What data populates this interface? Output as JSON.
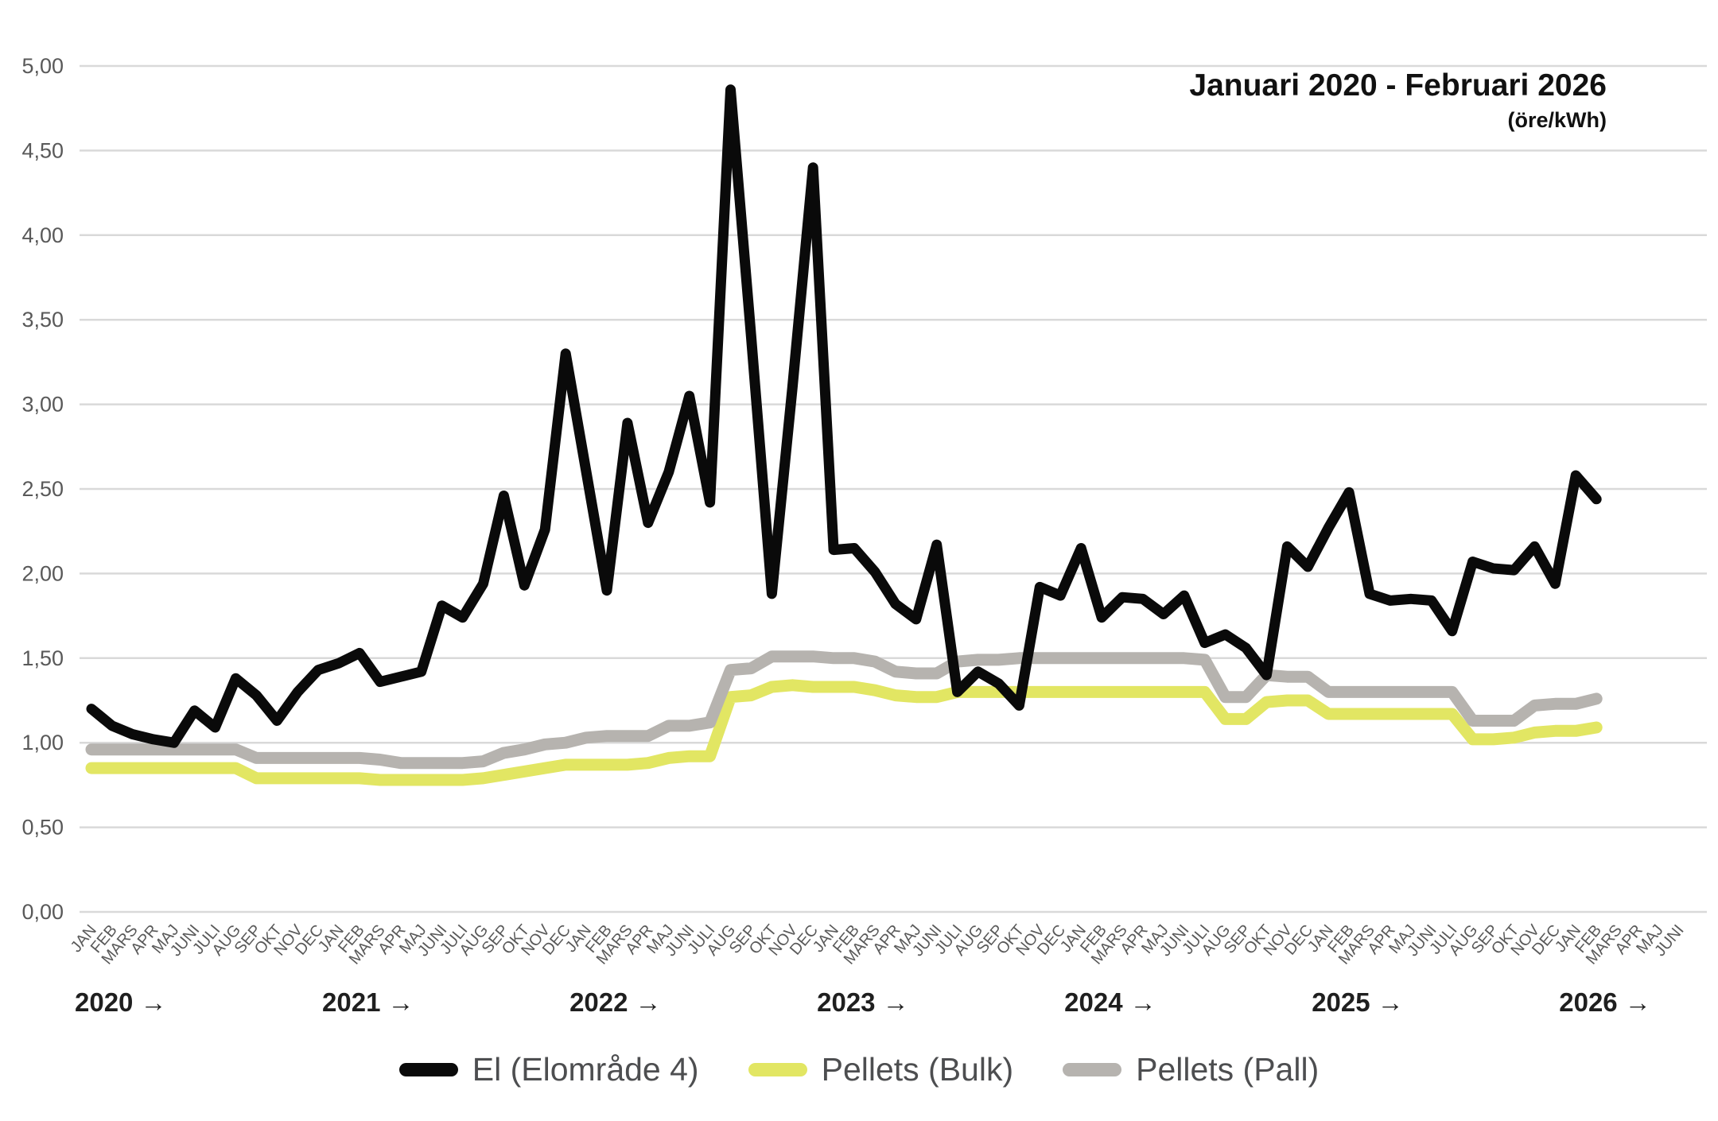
{
  "title": "Januari 2020 - Februari 2026",
  "subtitle": "(öre/kWh)",
  "colors": {
    "el": "#0a0a0a",
    "pellets_bulk": "#e2e663",
    "pellets_pall": "#b6b3af",
    "gridline": "#d9d9d9",
    "axis_text": "#595959",
    "year_text": "#1f1f1f",
    "legend_text": "#4d4e50"
  },
  "chart_data": {
    "type": "line",
    "title": "Januari 2020 - Februari 2026",
    "subtitle": "(öre/kWh)",
    "grid": true,
    "legend_position": "bottom",
    "y_axis": {
      "min": 0,
      "max": 5,
      "step": 0.5,
      "tick_labels": [
        "0,00",
        "0,50",
        "1,00",
        "1,50",
        "2,00",
        "2,50",
        "3,00",
        "3,50",
        "4,00",
        "4,50",
        "5,00"
      ]
    },
    "x_axis": {
      "months": [
        "JAN",
        "FEB",
        "MARS",
        "APR",
        "MAJ",
        "JUNI",
        "JULI",
        "AUG",
        "SEP",
        "OKT",
        "NOV",
        "DEC",
        "JAN",
        "FEB",
        "MARS",
        "APR",
        "MAJ",
        "JUNI",
        "JULI",
        "AUG",
        "SEP",
        "OKT",
        "NOV",
        "DEC",
        "JAN",
        "FEB",
        "MARS",
        "APR",
        "MAJ",
        "JUNI",
        "JULI",
        "AUG",
        "SEP",
        "OKT",
        "NOV",
        "DEC",
        "JAN",
        "FEB",
        "MARS",
        "APR",
        "MAJ",
        "JUNI",
        "JULI",
        "AUG",
        "SEP",
        "OKT",
        "NOV",
        "DEC",
        "JAN",
        "FEB",
        "MARS",
        "APR",
        "MAJ",
        "JUNI",
        "JULI",
        "AUG",
        "SEP",
        "OKT",
        "NOV",
        "DEC",
        "JAN",
        "FEB",
        "MARS",
        "APR",
        "MAJ",
        "JUNI",
        "JULI",
        "AUG",
        "SEP",
        "OKT",
        "NOV",
        "DEC",
        "JAN",
        "FEB",
        "MARS",
        "APR",
        "MAJ",
        "JUNI"
      ],
      "years": [
        {
          "label": "2020",
          "arrow": "→",
          "month_index": 0
        },
        {
          "label": "2021",
          "arrow": "→",
          "month_index": 12
        },
        {
          "label": "2022",
          "arrow": "→",
          "month_index": 24
        },
        {
          "label": "2023",
          "arrow": "→",
          "month_index": 36
        },
        {
          "label": "2024",
          "arrow": "→",
          "month_index": 48
        },
        {
          "label": "2025",
          "arrow": "→",
          "month_index": 60
        },
        {
          "label": "2026",
          "arrow": "→",
          "month_index": 72
        }
      ]
    },
    "series": [
      {
        "name": "El (Elområde 4)",
        "color": "#0a0a0a",
        "stroke_width": 13,
        "values": [
          1.2,
          1.1,
          1.05,
          1.02,
          1.0,
          1.19,
          1.09,
          1.38,
          1.28,
          1.13,
          1.3,
          1.43,
          1.47,
          1.53,
          1.36,
          1.39,
          1.42,
          1.81,
          1.74,
          1.94,
          2.46,
          1.93,
          2.26,
          3.3,
          2.6,
          1.9,
          2.89,
          2.3,
          2.6,
          3.05,
          2.42,
          4.86,
          3.4,
          1.88,
          3.1,
          4.4,
          2.14,
          2.15,
          2.01,
          1.82,
          1.73,
          2.17,
          1.3,
          1.42,
          1.35,
          1.22,
          1.92,
          1.87,
          2.15,
          1.74,
          1.86,
          1.85,
          1.76,
          1.87,
          1.59,
          1.64,
          1.56,
          1.4,
          2.16,
          2.04,
          2.27,
          2.48,
          1.88,
          1.84,
          1.85,
          1.84,
          1.66,
          2.07,
          2.03,
          2.02,
          2.16,
          1.94,
          2.58,
          2.44
        ]
      },
      {
        "name": "Pellets (Bulk)",
        "color": "#e2e663",
        "stroke_width": 15,
        "values": [
          0.85,
          0.85,
          0.85,
          0.85,
          0.85,
          0.85,
          0.85,
          0.85,
          0.79,
          0.79,
          0.79,
          0.79,
          0.79,
          0.79,
          0.78,
          0.78,
          0.78,
          0.78,
          0.78,
          0.79,
          0.81,
          0.83,
          0.85,
          0.87,
          0.87,
          0.87,
          0.87,
          0.88,
          0.91,
          0.92,
          0.92,
          1.27,
          1.28,
          1.33,
          1.34,
          1.33,
          1.33,
          1.33,
          1.31,
          1.28,
          1.27,
          1.27,
          1.3,
          1.3,
          1.3,
          1.3,
          1.3,
          1.3,
          1.3,
          1.3,
          1.3,
          1.3,
          1.3,
          1.3,
          1.3,
          1.14,
          1.14,
          1.24,
          1.25,
          1.25,
          1.17,
          1.17,
          1.17,
          1.17,
          1.17,
          1.17,
          1.17,
          1.02,
          1.02,
          1.03,
          1.06,
          1.07,
          1.07,
          1.09
        ]
      },
      {
        "name": "Pellets (Pall)",
        "color": "#b6b3af",
        "stroke_width": 15,
        "values": [
          0.96,
          0.96,
          0.96,
          0.96,
          0.96,
          0.96,
          0.96,
          0.96,
          0.91,
          0.91,
          0.91,
          0.91,
          0.91,
          0.91,
          0.9,
          0.88,
          0.88,
          0.88,
          0.88,
          0.89,
          0.94,
          0.96,
          0.99,
          1.0,
          1.03,
          1.04,
          1.04,
          1.04,
          1.1,
          1.1,
          1.12,
          1.43,
          1.44,
          1.51,
          1.51,
          1.51,
          1.5,
          1.5,
          1.48,
          1.42,
          1.41,
          1.41,
          1.48,
          1.49,
          1.49,
          1.5,
          1.5,
          1.5,
          1.5,
          1.5,
          1.5,
          1.5,
          1.5,
          1.5,
          1.49,
          1.27,
          1.27,
          1.4,
          1.39,
          1.39,
          1.3,
          1.3,
          1.3,
          1.3,
          1.3,
          1.3,
          1.3,
          1.13,
          1.13,
          1.13,
          1.22,
          1.23,
          1.23,
          1.26
        ]
      }
    ]
  },
  "legend": {
    "items": [
      {
        "label": "El (Elområde 4)",
        "color": "#0a0a0a"
      },
      {
        "label": "Pellets (Bulk)",
        "color": "#e2e663"
      },
      {
        "label": "Pellets (Pall)",
        "color": "#b6b3af"
      }
    ]
  }
}
